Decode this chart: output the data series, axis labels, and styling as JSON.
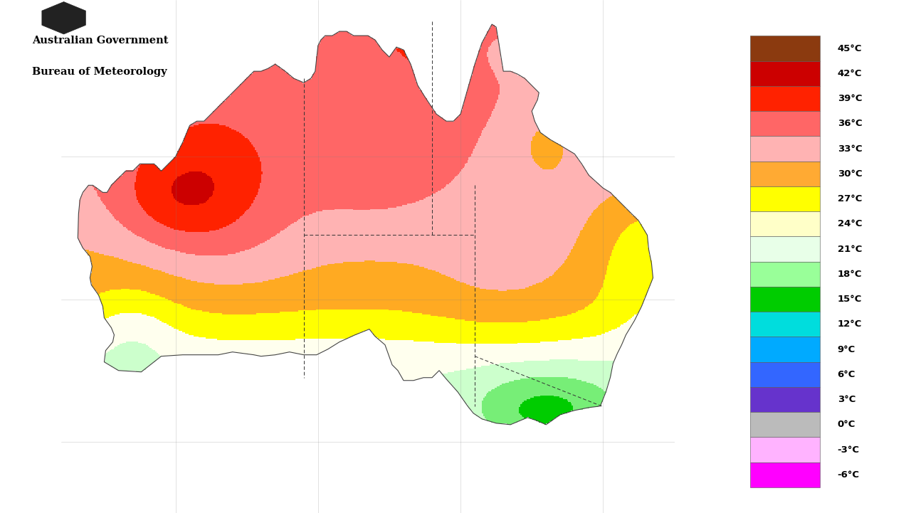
{
  "title_line1": "Australian Government",
  "title_line2": "Bureau of Meteorology",
  "colorbar_labels": [
    "45°C",
    "42°C",
    "39°C",
    "36°C",
    "33°C",
    "30°C",
    "27°C",
    "24°C",
    "21°C",
    "18°C",
    "15°C",
    "12°C",
    "9°C",
    "6°C",
    "3°C",
    "0°C",
    "-3°C",
    "-6°C"
  ],
  "colorbar_colors": [
    "#8B3A0F",
    "#CC0000",
    "#FF2200",
    "#FF6666",
    "#FFB3B3",
    "#FFAA33",
    "#FFFF00",
    "#FFFFC8",
    "#E8FFE8",
    "#99FF99",
    "#00CC00",
    "#00DDDD",
    "#00AAFF",
    "#3366FF",
    "#6633CC",
    "#BBBBBB",
    "#FFB3FF",
    "#FF00FF"
  ],
  "background_color": "#FFFFFF",
  "dpi": 100,
  "figsize": [
    12.8,
    7.21
  ],
  "lon_min": 112,
  "lon_max": 155,
  "lat_min": -45,
  "lat_max": -9
}
